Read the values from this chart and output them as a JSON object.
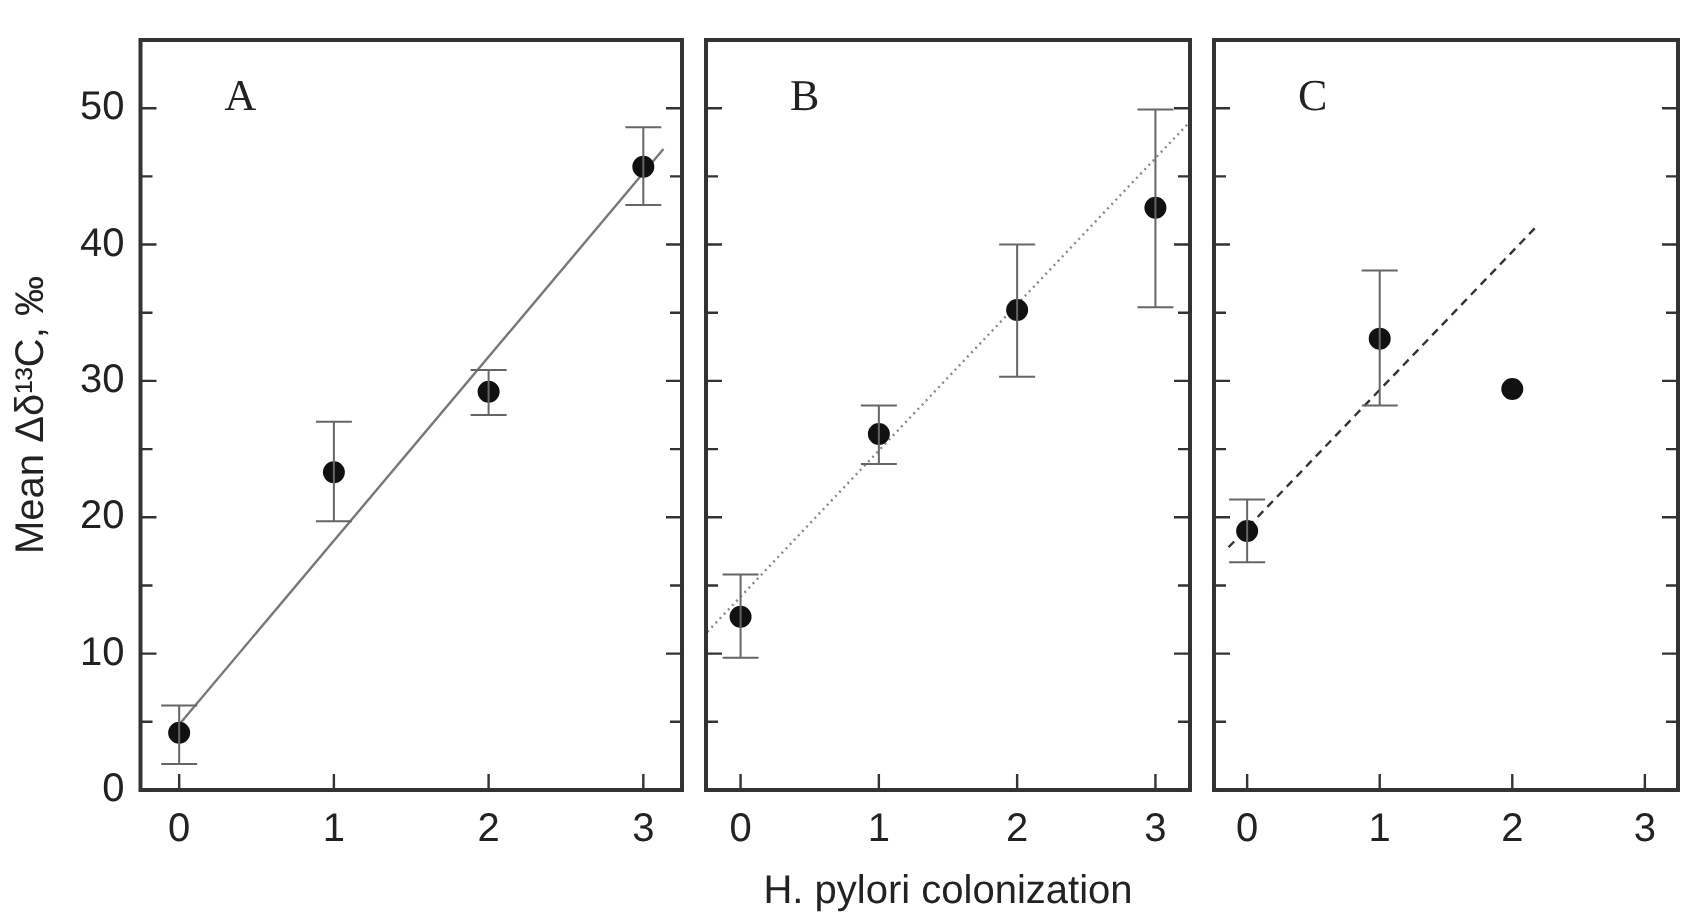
{
  "chart_data": [
    {
      "type": "scatter",
      "ylabel": "Mean Δδ¹³C, ‰",
      "annotations": [
        "A"
      ],
      "xlim": [
        -0.25,
        3.25
      ],
      "xticks": [
        0,
        1,
        2,
        3
      ],
      "ylim": [
        0,
        55
      ],
      "yticks": [
        0,
        {
          "value": 5,
          "label": null
        },
        10,
        {
          "value": 15,
          "label": null
        },
        20,
        {
          "value": 25,
          "label": null
        },
        30,
        {
          "value": 35,
          "label": null
        },
        40,
        {
          "value": 45,
          "label": null
        },
        50
      ],
      "series": [
        {
          "color": "#111111",
          "marker": "circle",
          "x": [
            0,
            1,
            2,
            3
          ],
          "values": [
            4.2,
            23.3,
            29.2,
            45.7
          ],
          "errors": [
            [
              1.9,
              6.2
            ],
            [
              19.7,
              27.0
            ],
            [
              27.5,
              30.8
            ],
            [
              42.9,
              48.6
            ]
          ]
        },
        {
          "type": "line",
          "marker": "none",
          "color": "#777777",
          "line_style": "solid",
          "x": [
            0,
            3.13
          ],
          "values": [
            4.8,
            47.0
          ]
        }
      ]
    },
    {
      "type": "scatter",
      "xlabel": "H. pylori colonization",
      "annotations": [
        "B"
      ],
      "tick_labels": "x",
      "xlim": [
        -0.25,
        3.25
      ],
      "xticks": [
        0,
        1,
        2,
        3
      ],
      "ylim": [
        0,
        55
      ],
      "yticks": [
        0,
        {
          "value": 5,
          "label": null
        },
        10,
        {
          "value": 15,
          "label": null
        },
        20,
        {
          "value": 25,
          "label": null
        },
        30,
        {
          "value": 35,
          "label": null
        },
        40,
        {
          "value": 45,
          "label": null
        },
        50
      ],
      "series": [
        {
          "color": "#111111",
          "marker": "circle",
          "x": [
            0,
            1,
            2,
            3
          ],
          "values": [
            12.7,
            26.1,
            35.2,
            42.7
          ],
          "errors": [
            [
              9.7,
              15.8
            ],
            [
              23.9,
              28.2
            ],
            [
              30.3,
              40.0
            ],
            [
              35.4,
              49.9
            ]
          ]
        },
        {
          "type": "line",
          "marker": "none",
          "color": "#888888",
          "line_style": "dotted",
          "x": [
            -0.24,
            3.23
          ],
          "values": [
            11.6,
            48.8
          ]
        }
      ]
    },
    {
      "type": "scatter",
      "annotations": [
        "C"
      ],
      "tick_labels": "x",
      "xlim": [
        -0.25,
        3.25
      ],
      "xticks": [
        0,
        1,
        2,
        3
      ],
      "ylim": [
        0,
        55
      ],
      "yticks": [
        0,
        {
          "value": 5,
          "label": null
        },
        10,
        {
          "value": 15,
          "label": null
        },
        20,
        {
          "value": 25,
          "label": null
        },
        30,
        {
          "value": 35,
          "label": null
        },
        40,
        {
          "value": 45,
          "label": null
        },
        50
      ],
      "series": [
        {
          "color": "#111111",
          "marker": "circle",
          "x": [
            0,
            1,
            2
          ],
          "values": [
            19.0,
            33.1,
            29.4
          ],
          "errors": [
            [
              16.7,
              21.3
            ],
            [
              28.2,
              38.1
            ],
            null
          ]
        },
        {
          "type": "line",
          "marker": "none",
          "color": "#333333",
          "line_style": "dashed",
          "x": [
            -0.14,
            2.2
          ],
          "values": [
            17.8,
            41.5
          ]
        }
      ]
    }
  ]
}
